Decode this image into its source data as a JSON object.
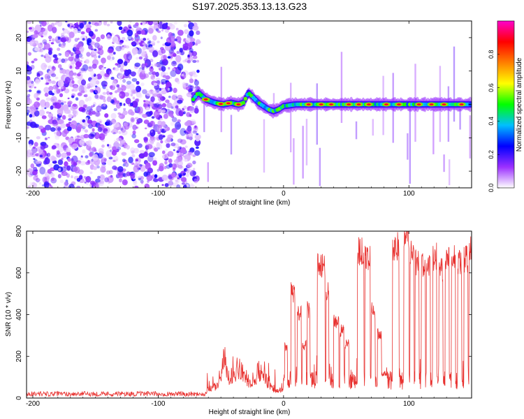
{
  "figure": {
    "title": "S197.2025.353.13.13.G23"
  },
  "chart_data": [
    {
      "type": "heatmap",
      "xlabel": "Height of straight line (km)",
      "ylabel": "Frequency (Hz)",
      "xlim": [
        -205,
        150
      ],
      "ylim": [
        -25,
        25
      ],
      "x_ticks": [
        -200,
        -100,
        0,
        100
      ],
      "y_ticks": [
        -20,
        -10,
        0,
        10,
        20
      ],
      "grid": false,
      "noise_region": {
        "x_from": -205,
        "x_to": -68
      },
      "signal_line": {
        "x": [
          -72,
          -68,
          -62,
          -55,
          -48,
          -42,
          -36,
          -32,
          -28,
          -24,
          -20,
          -16,
          -12,
          -8,
          -4,
          0,
          10,
          20,
          30,
          40,
          50,
          60,
          70,
          80,
          90,
          100,
          110,
          120,
          130,
          140,
          150
        ],
        "y": [
          1.5,
          3.5,
          1.5,
          0.5,
          0,
          0.5,
          0,
          0.5,
          3.5,
          2.0,
          0.5,
          -0.5,
          -1.5,
          -2.0,
          -1.5,
          -0.5,
          0,
          0,
          0,
          0,
          0,
          0,
          0,
          0,
          0,
          0,
          0,
          0,
          0,
          0,
          0
        ]
      },
      "colorbar": {
        "label": "Normalized spectral amplitude",
        "range": [
          0,
          1
        ],
        "ticks": [
          0.0,
          0.2,
          0.4,
          0.6,
          0.8
        ],
        "colors": [
          "#ffffff",
          "#9b30ff",
          "#0000ff",
          "#00bfff",
          "#00ff00",
          "#ffff00",
          "#ff7f00",
          "#ff0000",
          "#ff00cc"
        ]
      }
    },
    {
      "type": "line",
      "xlabel": "Height of straight line (km)",
      "ylabel": "SNR (10 * v/v)",
      "xlim": [
        -205,
        150
      ],
      "ylim": [
        0,
        800
      ],
      "x_ticks": [
        -200,
        -100,
        0,
        100
      ],
      "y_ticks": [
        0,
        200,
        400,
        600,
        800
      ],
      "grid": false,
      "color": "#e8312f",
      "baseline_snr": {
        "x_from": -205,
        "x_to": -62,
        "mean": 20
      },
      "transition": {
        "x": [
          -62,
          -55,
          -50,
          -48,
          -45,
          -40,
          -35,
          -30,
          -25,
          -20,
          -15,
          -10,
          -5,
          0
        ],
        "y": [
          40,
          60,
          90,
          250,
          120,
          140,
          180,
          100,
          70,
          150,
          110,
          60,
          40,
          50
        ]
      },
      "pulses": [
        {
          "x_start": 1,
          "x_end": 3,
          "level": 250
        },
        {
          "x_start": 6,
          "x_end": 9,
          "level": 520
        },
        {
          "x_start": 11,
          "x_end": 14,
          "level": 420
        },
        {
          "x_start": 15,
          "x_end": 18,
          "level": 260
        },
        {
          "x_start": 19,
          "x_end": 21,
          "level": 430
        },
        {
          "x_start": 27,
          "x_end": 33,
          "level": 650
        },
        {
          "x_start": 34,
          "x_end": 36,
          "level": 520
        },
        {
          "x_start": 40,
          "x_end": 44,
          "level": 370
        },
        {
          "x_start": 45,
          "x_end": 48,
          "level": 330
        },
        {
          "x_start": 49,
          "x_end": 52,
          "level": 260
        },
        {
          "x_start": 59,
          "x_end": 64,
          "level": 720
        },
        {
          "x_start": 65,
          "x_end": 69,
          "level": 690
        },
        {
          "x_start": 70,
          "x_end": 73,
          "level": 430
        },
        {
          "x_start": 75,
          "x_end": 78,
          "level": 310
        },
        {
          "x_start": 79,
          "x_end": 82,
          "level": 120
        },
        {
          "x_start": 87,
          "x_end": 92,
          "level": 740
        },
        {
          "x_start": 96,
          "x_end": 100,
          "level": 790
        },
        {
          "x_start": 101,
          "x_end": 104,
          "level": 700
        },
        {
          "x_start": 105,
          "x_end": 108,
          "level": 660
        },
        {
          "x_start": 110,
          "x_end": 113,
          "level": 650
        },
        {
          "x_start": 114,
          "x_end": 117,
          "level": 640
        },
        {
          "x_start": 119,
          "x_end": 122,
          "level": 690
        },
        {
          "x_start": 124,
          "x_end": 127,
          "level": 630
        },
        {
          "x_start": 129,
          "x_end": 132,
          "level": 680
        },
        {
          "x_start": 134,
          "x_end": 137,
          "level": 690
        },
        {
          "x_start": 139,
          "x_end": 142,
          "level": 660
        },
        {
          "x_start": 144,
          "x_end": 147,
          "level": 680
        },
        {
          "x_start": 148,
          "x_end": 150,
          "level": 720
        }
      ]
    }
  ]
}
